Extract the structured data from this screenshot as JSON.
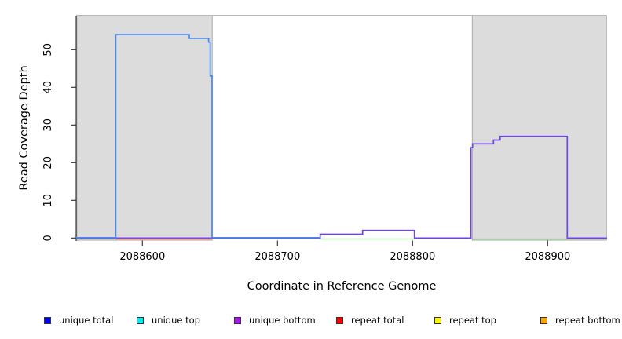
{
  "chart_data": {
    "type": "line",
    "subtype": "step-coverage",
    "xlabel": "Coordinate in Reference Genome",
    "ylabel": "Read Coverage Depth",
    "x_ticks": [
      2088600,
      2088700,
      2088800,
      2088900
    ],
    "y_ticks": [
      0,
      10,
      20,
      30,
      40,
      50
    ],
    "xlim": [
      2088551,
      2088944
    ],
    "ylim": [
      0,
      59
    ],
    "grid": false,
    "shaded_regions": [
      {
        "name": "repeat-region-left",
        "from": 2088551.5,
        "to": 2088651.7,
        "fill": "#dcdcdc",
        "border": "#ababab"
      },
      {
        "name": "repeat-region-right",
        "from": 2088844.2,
        "to": 2088943.6,
        "fill": "#dcdcdc",
        "border": "#ababab"
      }
    ],
    "series": [
      {
        "name": "unique total",
        "color": "#4d87ea",
        "points": [
          [
            2088551,
            0
          ],
          [
            2088580.3,
            0
          ],
          [
            2088580.3,
            54
          ],
          [
            2088634.7,
            54
          ],
          [
            2088634.7,
            53
          ],
          [
            2088649,
            53
          ],
          [
            2088649,
            52
          ],
          [
            2088650.2,
            52
          ],
          [
            2088650.2,
            43
          ],
          [
            2088651.6,
            43
          ],
          [
            2088651.6,
            0
          ],
          [
            2088732,
            0
          ]
        ]
      },
      {
        "name": "unique bottom",
        "color": "#6b46e5",
        "points": [
          [
            2088551,
            0
          ],
          [
            2088731.6,
            0
          ],
          [
            2088731.6,
            1
          ],
          [
            2088763,
            1
          ],
          [
            2088763,
            2
          ],
          [
            2088801.4,
            2
          ],
          [
            2088801.4,
            0
          ],
          [
            2088843.2,
            0
          ],
          [
            2088843.2,
            24
          ],
          [
            2088844.4,
            24
          ],
          [
            2088844.4,
            25
          ],
          [
            2088859.9,
            25
          ],
          [
            2088859.9,
            26
          ],
          [
            2088864.8,
            26
          ],
          [
            2088864.8,
            27
          ],
          [
            2088914.5,
            27
          ],
          [
            2088914.5,
            0
          ],
          [
            2088944,
            0
          ]
        ]
      }
    ],
    "baseline_overlays": [
      {
        "name": "repeat-total-baseline",
        "color": "#ef6472",
        "from": 2088580.3,
        "to": 2088651.6
      },
      {
        "name": "overlap-baseline-middle",
        "color": "#86c986",
        "from": 2088731.6,
        "to": 2088801.4
      },
      {
        "name": "overlap-baseline-right",
        "color": "#86c986",
        "from": 2088844.2,
        "to": 2088914.5
      }
    ],
    "frame": {
      "top_line_color": "#8f8f8f",
      "axis_color": "#2b2b2b"
    }
  },
  "legend": {
    "items": [
      {
        "label": "unique total",
        "color": "#0000f5"
      },
      {
        "label": "unique top",
        "color": "#00eef0"
      },
      {
        "label": "unique bottom",
        "color": "#a41ae8"
      },
      {
        "label": "repeat total",
        "color": "#fb0007"
      },
      {
        "label": "repeat top",
        "color": "#fdf900"
      },
      {
        "label": "repeat bottom",
        "color": "#f9a602"
      }
    ]
  }
}
